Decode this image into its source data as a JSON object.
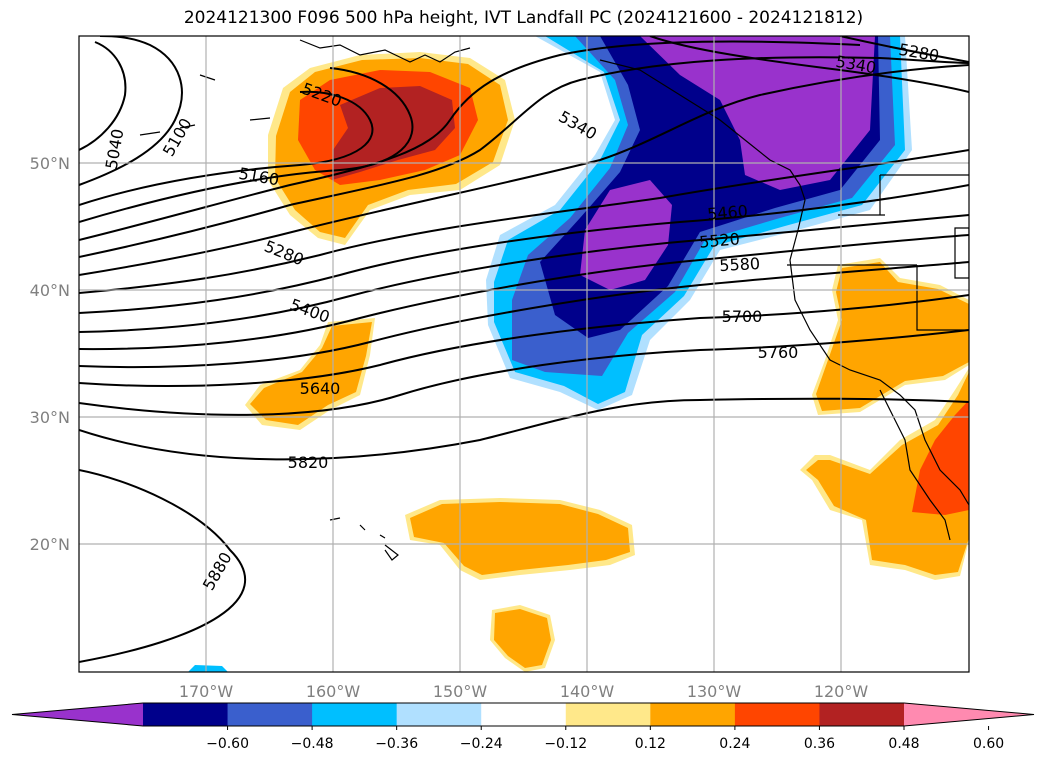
{
  "title": "2024121300 F096 500 hPa height, IVT Landfall PC (2024121600 - 2024121812)",
  "map": {
    "lon_labels": [
      "170°W",
      "160°W",
      "150°W",
      "140°W",
      "130°W",
      "120°W"
    ],
    "lat_labels": [
      "50°N",
      "40°N",
      "30°N",
      "20°N"
    ],
    "gridlines": true
  },
  "contour_labels": [
    "5040",
    "5100",
    "5160",
    "5220",
    "5280",
    "5340",
    "5280",
    "5340",
    "5400",
    "5460",
    "5520",
    "5580",
    "5640",
    "5700",
    "5760",
    "5820",
    "5880"
  ],
  "colorbar": {
    "ticks": [
      "−0.60",
      "−0.48",
      "−0.36",
      "−0.24",
      "−0.12",
      "0.12",
      "0.24",
      "0.36",
      "0.48",
      "0.60"
    ],
    "colors": [
      "#9932cc",
      "#00008b",
      "#3a5fcd",
      "#00bfff",
      "#b0e0ff",
      "#ffffff",
      "#ffe88a",
      "#ffa500",
      "#ff4500",
      "#b22222",
      "#ff8ab0"
    ]
  }
}
